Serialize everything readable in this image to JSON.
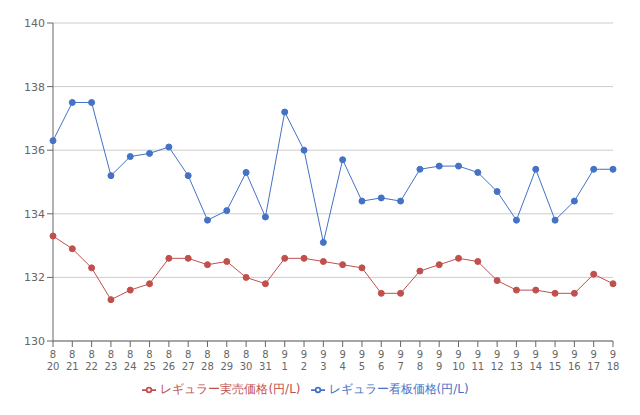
{
  "chart_data": {
    "type": "line",
    "categories": [
      "8\n20",
      "8\n21",
      "8\n22",
      "8\n23",
      "8\n24",
      "8\n25",
      "8\n26",
      "8\n27",
      "8\n28",
      "8\n29",
      "8\n30",
      "8\n31",
      "9\n1",
      "9\n2",
      "9\n3",
      "9\n4",
      "9\n5",
      "9\n6",
      "9\n7",
      "9\n8",
      "9\n9",
      "9\n10",
      "9\n11",
      "9\n12",
      "9\n13",
      "9\n14",
      "9\n15",
      "9\n16",
      "9\n17",
      "9\n18"
    ],
    "series": [
      {
        "name": "レギュラー看板価格(円/L)",
        "color": "#4472C4",
        "marker": "circle",
        "values": [
          136.3,
          137.5,
          137.5,
          135.2,
          135.8,
          135.9,
          136.1,
          135.2,
          133.8,
          134.1,
          135.3,
          133.9,
          137.2,
          136.0,
          133.1,
          135.7,
          134.4,
          134.5,
          134.4,
          135.4,
          135.5,
          135.5,
          135.3,
          134.7,
          133.8,
          135.4,
          133.8,
          134.4,
          135.4,
          135.4
        ]
      },
      {
        "name": "レギュラー実売価格(円/L)",
        "color": "#C0504D",
        "marker": "circle",
        "values": [
          133.3,
          132.9,
          132.3,
          131.3,
          131.6,
          131.8,
          132.6,
          132.6,
          132.4,
          132.5,
          132.0,
          131.8,
          132.6,
          132.6,
          132.5,
          132.4,
          132.3,
          131.5,
          131.5,
          132.2,
          132.4,
          132.6,
          132.5,
          131.9,
          131.6,
          131.6,
          131.5,
          131.5,
          132.1,
          131.8
        ]
      }
    ],
    "ylim": [
      130,
      140
    ],
    "yticks": [
      130,
      132,
      134,
      136,
      138,
      140
    ],
    "grid": true,
    "legend": "bottom"
  }
}
